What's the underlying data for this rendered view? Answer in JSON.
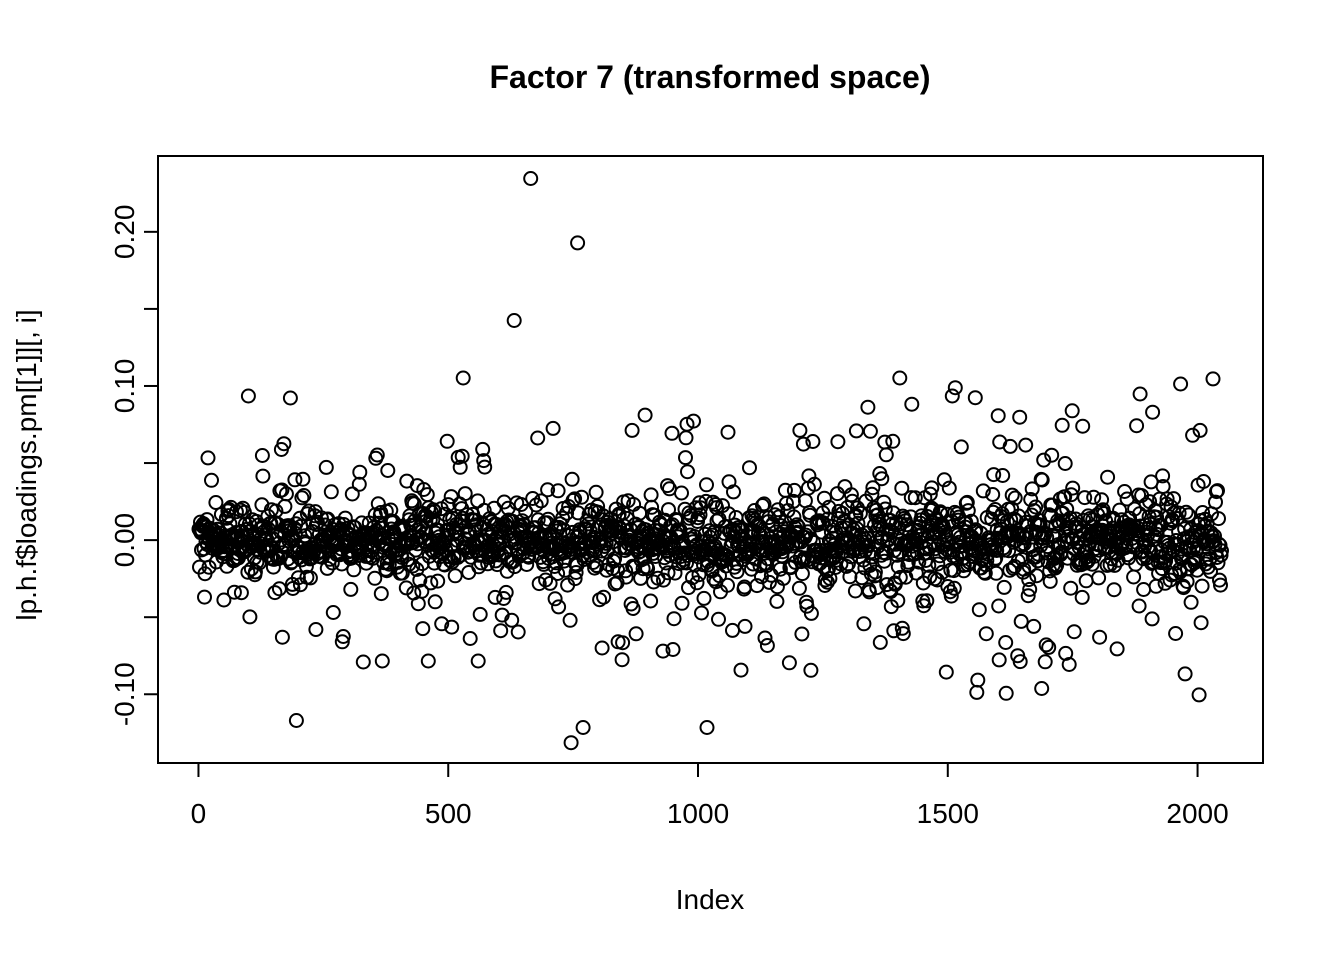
{
  "figure": {
    "background_color": "#ffffff",
    "foreground_color": "#000000"
  },
  "chart_data": {
    "type": "scatter",
    "title": "Factor 7 (transformed space)",
    "xlabel": "Index",
    "ylabel": "lp.h.f$loadings.pm[[1]][, i]",
    "legend": "none",
    "grid": false,
    "marker": {
      "shape": "open-circle",
      "radius_px": 6.5,
      "stroke_px": 2,
      "color": "#000000",
      "fill": "none"
    },
    "n_points": 2048,
    "x_index_range": [
      1,
      2048
    ],
    "axes": {
      "x_ticks": [
        0,
        500,
        1000,
        1500,
        2000
      ],
      "x_tick_labels": [
        "0",
        "500",
        "1000",
        "1500",
        "2000"
      ],
      "y_ticks": [
        -0.1,
        -0.05,
        0.0,
        0.05,
        0.1,
        0.15,
        0.2
      ],
      "y_tick_labels": [
        "-0.10",
        "",
        "0.00",
        "",
        "0.10",
        "",
        "0.20"
      ],
      "xlim": [
        -81,
        2131
      ],
      "ylim": [
        -0.1446,
        0.2492
      ]
    },
    "summary": {
      "description": "Dense band of factor-loading values centered at 0; spread increases with index; a few extreme outliers.",
      "y_data_max": 0.2346,
      "y_data_min": -0.1314
    },
    "bulk_model": {
      "note": "estimated from pixels: mixture of normals centered at 0, sigma grows left to right",
      "seed": 42,
      "core_weight": 0.79,
      "core_sigma_start": 0.0095,
      "core_sigma_end": 0.015,
      "mid_weight": 0.175,
      "mid_sigma_multiplier": 2.7,
      "tail_mag_min": 0.032,
      "tail_mag_max": 0.095,
      "tail_growth_start": 0.62,
      "tail_growth_end": 1.22,
      "clamp_abs": 0.105
    },
    "outliers": [
      [
        665,
        0.2346
      ],
      [
        759,
        0.1928
      ],
      [
        632,
        0.1425
      ],
      [
        530,
        0.1052
      ],
      [
        100,
        0.0935
      ],
      [
        184,
        0.0922
      ],
      [
        1404,
        0.1052
      ],
      [
        1509,
        0.0935
      ],
      [
        1885,
        0.0948
      ],
      [
        2031,
        0.1046
      ],
      [
        1910,
        0.083
      ],
      [
        1428,
        0.0882
      ],
      [
        128,
        0.0549
      ],
      [
        166,
        0.0588
      ],
      [
        868,
        0.0712
      ],
      [
        1204,
        0.0712
      ],
      [
        1345,
        0.0706
      ],
      [
        1729,
        0.0745
      ],
      [
        1770,
        0.0739
      ],
      [
        1990,
        0.068
      ],
      [
        2005,
        0.0712
      ],
      [
        1625,
        0.0608
      ],
      [
        710,
        0.0725
      ],
      [
        948,
        0.0693
      ],
      [
        978,
        0.0752
      ],
      [
        1060,
        0.07
      ],
      [
        1230,
        0.064
      ],
      [
        196,
        -0.117
      ],
      [
        746,
        -0.1314
      ],
      [
        770,
        -0.1216
      ],
      [
        1018,
        -0.1216
      ],
      [
        330,
        -0.0791
      ],
      [
        460,
        -0.0784
      ],
      [
        560,
        -0.0784
      ],
      [
        1086,
        -0.0843
      ],
      [
        930,
        -0.072
      ],
      [
        1497,
        -0.0856
      ],
      [
        1560,
        -0.0908
      ],
      [
        1640,
        -0.075
      ],
      [
        1697,
        -0.068
      ],
      [
        1753,
        -0.0594
      ],
      [
        1804,
        -0.063
      ],
      [
        605,
        -0.0588
      ],
      [
        640,
        -0.0596
      ],
      [
        876,
        -0.0608
      ],
      [
        1332,
        -0.0543
      ],
      [
        288,
        -0.066
      ],
      [
        368,
        -0.0784
      ],
      [
        808,
        -0.07
      ],
      [
        840,
        -0.066
      ]
    ]
  }
}
